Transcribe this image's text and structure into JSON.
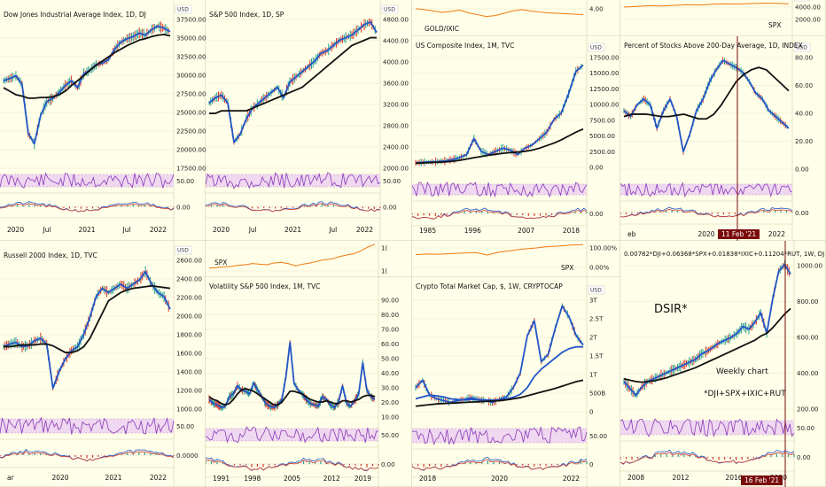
{
  "colors": {
    "background": "#fffee8",
    "grid": "#e9e7cc",
    "blue": "#2255c8",
    "black": "#111111",
    "orange": "#f07a10",
    "purple": "#8a3ab8",
    "rsiBand": "#efd8f0",
    "red": "#d23b2c",
    "green": "#2ba08e",
    "maroon": "#7a0c0c"
  },
  "chart_data": [
    {
      "id": "dji",
      "type": "line",
      "title": "Dow Jones Industrial Average Index, 1D, DJ",
      "yTicks": [
        "37500.00",
        "35000.00",
        "32500.00",
        "30000.00",
        "27500.00",
        "25000.00",
        "22500.00",
        "20000.00",
        "17500.00"
      ],
      "yRange": [
        16000,
        38000
      ],
      "xTicks": [
        "2020",
        "Jul",
        "2021",
        "Jul",
        "2022"
      ],
      "rsiTicks": [
        "50.00"
      ],
      "macdTicks": [
        "0.00"
      ],
      "unit": "USD",
      "series": [
        {
          "kind": "price",
          "values": [
            28500,
            28800,
            29200,
            28000,
            21000,
            19500,
            23500,
            25500,
            26000,
            26800,
            27800,
            28500,
            27500,
            29500,
            30000,
            30800,
            31000,
            31500,
            33000,
            34000,
            34500,
            34800,
            35300,
            35000,
            35800,
            36300,
            36000,
            35500
          ]
        },
        {
          "kind": "ma",
          "values": [
            27500,
            27000,
            26500,
            26300,
            26000,
            26000,
            26100,
            26100,
            26200,
            26500,
            27000,
            27800,
            28500,
            29200,
            30000,
            30700,
            31300,
            31900,
            32500,
            33000,
            33500,
            33900,
            34300,
            34500,
            34800,
            35000,
            35100,
            34900
          ]
        }
      ]
    },
    {
      "id": "spx",
      "type": "line",
      "title": "S&P 500 Index, 1D, SP",
      "yTicks": [
        "4800.00",
        "4400.00",
        "4000.00",
        "3600.00",
        "3200.00",
        "2800.00",
        "2400.00",
        "2000.00"
      ],
      "yRange": [
        1950,
        4900
      ],
      "xTicks": [
        "2020",
        "Jul",
        "2021",
        "Jul",
        "2022"
      ],
      "rsiTicks": [
        "50.00"
      ],
      "macdTicks": [
        "0.00"
      ],
      "unit": "USD",
      "series": [
        {
          "kind": "price",
          "values": [
            3200,
            3300,
            3350,
            3200,
            2450,
            2600,
            2900,
            3100,
            3200,
            3300,
            3400,
            3500,
            3300,
            3600,
            3700,
            3800,
            3900,
            4000,
            4150,
            4200,
            4300,
            4400,
            4450,
            4500,
            4600,
            4700,
            4750,
            4550
          ]
        },
        {
          "kind": "ma",
          "values": [
            3000,
            3000,
            3050,
            3050,
            3050,
            3050,
            3050,
            3100,
            3150,
            3200,
            3250,
            3300,
            3350,
            3400,
            3450,
            3500,
            3600,
            3700,
            3800,
            3900,
            4000,
            4100,
            4200,
            4300,
            4350,
            4400,
            4450,
            4450
          ]
        }
      ]
    },
    {
      "id": "goldixic",
      "type": "line",
      "title": "GOLD/IXIC",
      "yTicks": [
        "4.00"
      ],
      "yRange": [
        0,
        5
      ],
      "unit": "",
      "series": [
        {
          "kind": "price",
          "values": [
            3.5,
            3.3,
            3.0,
            2.7,
            2.9,
            3.2,
            2.6,
            2.2,
            1.8,
            2.0,
            2.5,
            3.0,
            3.3,
            3.0,
            2.8,
            2.6,
            2.5,
            2.4,
            2.3,
            2.2
          ]
        }
      ]
    },
    {
      "id": "spxmini1",
      "type": "line",
      "title": "SPX",
      "yTicks": [
        "4000.00",
        "2000.00"
      ],
      "yRange": [
        0,
        5000
      ],
      "unit": "USD",
      "series": [
        {
          "kind": "price",
          "values": [
            3500,
            3700,
            3900,
            3800,
            4000,
            4200,
            4100,
            4300,
            4400,
            4350,
            4500,
            4600,
            4550,
            4400
          ]
        }
      ]
    },
    {
      "id": "ixic",
      "type": "line",
      "title": "US Composite Index, 1M, TVC",
      "yTicks": [
        "17500.00",
        "15000.00",
        "12500.00",
        "10000.00",
        "7500.00",
        "5000.00",
        "2500.00",
        "0.00"
      ],
      "yRange": [
        -500,
        17500
      ],
      "xTicks": [
        "1985",
        "1996",
        "2007",
        "2018"
      ],
      "rsiTicks": [],
      "macdTicks": [
        "0.00"
      ],
      "unit": "USD",
      "series": [
        {
          "kind": "price",
          "values": [
            200,
            300,
            350,
            400,
            500,
            700,
            1000,
            1500,
            4000,
            2000,
            1500,
            2000,
            2500,
            2200,
            1500,
            2500,
            3000,
            4000,
            5000,
            7000,
            8000,
            11000,
            14500,
            15500
          ]
        },
        {
          "kind": "ma",
          "values": [
            150,
            200,
            250,
            300,
            350,
            450,
            600,
            800,
            1000,
            1200,
            1400,
            1550,
            1700,
            1800,
            1900,
            2000,
            2200,
            2500,
            2900,
            3300,
            3800,
            4400,
            5000,
            5500
          ]
        }
      ]
    },
    {
      "id": "pct200",
      "type": "line",
      "title": "Percent of Stocks Above 200-Day Average, 1D, INDEX",
      "yTicks": [
        "80.00",
        "60.00",
        "40.00",
        "20.00",
        "0.00"
      ],
      "yRange": [
        -5,
        95
      ],
      "xTicks": [
        "eb",
        "2020",
        "2022"
      ],
      "rsiTicks": [],
      "macdTicks": [
        "0.00"
      ],
      "unit": "USD",
      "dateLabel": "11 Feb '21",
      "series": [
        {
          "kind": "price",
          "values": [
            45,
            40,
            50,
            55,
            50,
            30,
            45,
            55,
            40,
            10,
            25,
            45,
            55,
            70,
            80,
            88,
            85,
            82,
            78,
            70,
            60,
            55,
            45,
            40,
            35,
            30
          ]
        },
        {
          "kind": "ma",
          "values": [
            40,
            42,
            42,
            42,
            41,
            40,
            40,
            41,
            42,
            40,
            38,
            38,
            42,
            50,
            60,
            70,
            76,
            80,
            82,
            80,
            74,
            68,
            62
          ]
        }
      ]
    },
    {
      "id": "rut",
      "type": "line",
      "title": "Russell 2000 Index, 1D, TVC",
      "yTicks": [
        "2600.00",
        "2400.00",
        "2200.00",
        "2000.00",
        "1800.00",
        "1600.00",
        "1400.00",
        "1200.00",
        "1000.00"
      ],
      "yRange": [
        800,
        2650
      ],
      "xTicks": [
        "ar",
        "2020",
        "2021",
        "2022"
      ],
      "rsiTicks": [
        "50.00"
      ],
      "macdTicks": [
        "0.0000"
      ],
      "unit": "USD",
      "series": [
        {
          "kind": "price",
          "values": [
            1550,
            1580,
            1600,
            1550,
            1560,
            1620,
            1650,
            1580,
            1050,
            1250,
            1400,
            1500,
            1550,
            1700,
            1900,
            2150,
            2250,
            2200,
            2250,
            2300,
            2250,
            2300,
            2350,
            2450,
            2300,
            2200,
            2150,
            2000
          ]
        },
        {
          "kind": "ma",
          "values": [
            1550,
            1550,
            1560,
            1570,
            1570,
            1570,
            1580,
            1580,
            1560,
            1520,
            1480,
            1480,
            1500,
            1550,
            1650,
            1800,
            1950,
            2100,
            2150,
            2200,
            2230,
            2250,
            2260,
            2270,
            2280,
            2270,
            2260,
            2250
          ]
        }
      ]
    },
    {
      "id": "spxmini2",
      "type": "line",
      "title": "SPX",
      "yTicks": [
        "1(",
        "1("
      ],
      "yRange": [
        0,
        5000
      ],
      "unit": "",
      "series": [
        {
          "kind": "price",
          "values": [
            500,
            600,
            700,
            800,
            1000,
            1100,
            1300,
            1200,
            1100,
            1400,
            1500,
            1300,
            900,
            1200,
            1400,
            1700,
            2000,
            2100,
            2500,
            2800,
            3000,
            3500,
            4200,
            4700
          ]
        }
      ]
    },
    {
      "id": "vix",
      "type": "bar",
      "title": "Volatility S&P 500 Index, 1M, TVC",
      "yTicks": [
        "90.00",
        "80.00",
        "70.00",
        "60.00",
        "50.00",
        "40.00",
        "30.00",
        "20.00",
        "10.00"
      ],
      "yRange": [
        5,
        95
      ],
      "xTicks": [
        "1991",
        "1998",
        "2005",
        "2012",
        "2019"
      ],
      "rsiTicks": [
        "50.00"
      ],
      "macdTicks": [
        "0.00"
      ],
      "unit": "",
      "series": [
        {
          "kind": "price",
          "values": [
            18,
            15,
            14,
            12,
            13,
            20,
            22,
            28,
            25,
            24,
            22,
            30,
            25,
            20,
            15,
            13,
            12,
            14,
            18,
            35,
            60,
            30,
            25,
            22,
            18,
            15,
            14,
            13,
            20,
            18,
            14,
            12,
            16,
            28,
            15,
            13,
            17,
            22,
            45,
            25,
            20,
            18
          ]
        },
        {
          "kind": "ma",
          "values": [
            20,
            18,
            17,
            15,
            14,
            15,
            18,
            22,
            25,
            26,
            25,
            24,
            22,
            20,
            18,
            16,
            14,
            14,
            16,
            20,
            24,
            24,
            23,
            22,
            20,
            18,
            17,
            16,
            16,
            17,
            16,
            15,
            15,
            17,
            17,
            16,
            17,
            18,
            20,
            21,
            21,
            20
          ]
        }
      ]
    },
    {
      "id": "spxmini3",
      "type": "line",
      "title": "SPX",
      "yTicks": [
        "100.00%",
        "0.00%"
      ],
      "yRange": [
        0,
        5000
      ],
      "unit": "",
      "series": [
        {
          "kind": "price",
          "values": [
            2600,
            2700,
            2650,
            2800,
            2900,
            3000,
            2500,
            3100,
            3400,
            3700,
            3900,
            4200,
            4300,
            4500,
            4600
          ]
        }
      ]
    },
    {
      "id": "crypto",
      "type": "line",
      "title": "Crypto Total Market Cap, $, 1W, CRYPTOCAP",
      "yTicks": [
        "3T",
        "2.5T",
        "2T",
        "1.5T",
        "1T",
        "500B",
        "0"
      ],
      "yRange": [
        -50,
        3100
      ],
      "xTicks": [
        "2018",
        "2020",
        "2022"
      ],
      "rsiTicks": [
        "50.00"
      ],
      "macdTicks": [
        "0"
      ],
      "unit": "USD",
      "series": [
        {
          "kind": "price",
          "values": [
            600,
            800,
            400,
            300,
            250,
            200,
            250,
            280,
            330,
            270,
            250,
            200,
            280,
            350,
            600,
            1000,
            2000,
            2400,
            1300,
            1500,
            2200,
            2800,
            2500,
            2000,
            1750
          ]
        },
        {
          "kind": "ma",
          "values": [
            300,
            350,
            400,
            380,
            350,
            300,
            280,
            270,
            280,
            280,
            270,
            260,
            270,
            290,
            340,
            420,
            600,
            900,
            1100,
            1250,
            1400,
            1550,
            1650,
            1700,
            1700
          ]
        },
        {
          "kind": "ma2",
          "values": [
            100,
            120,
            140,
            160,
            170,
            180,
            190,
            200,
            210,
            220,
            230,
            240,
            250,
            270,
            300,
            330,
            380,
            430,
            480,
            530,
            580,
            640,
            700,
            760,
            800
          ]
        }
      ]
    },
    {
      "id": "dsir",
      "type": "line",
      "title": "0.00782*DJI+0.06368*SPX+0.01838*IXIC+0.11204*RUT, 1W, DJ",
      "yTicks": [
        "1000.00",
        "800.00",
        "600.00",
        "400.00",
        "200.00"
      ],
      "yRange": [
        100,
        1180
      ],
      "xTicks": [
        "2008",
        "2012",
        "2016",
        "2020"
      ],
      "rsiTicks": [
        "50.00"
      ],
      "macdTicks": [
        "0.00"
      ],
      "unit": "",
      "dateLabel": "16 Feb '21",
      "annotations": [
        "DSIR*",
        "Weekly chart",
        "*DJI+SPX+IXIC+RUT"
      ],
      "series": [
        {
          "kind": "price",
          "values": [
            300,
            250,
            200,
            260,
            300,
            320,
            340,
            360,
            380,
            400,
            420,
            440,
            460,
            500,
            520,
            550,
            580,
            600,
            620,
            650,
            700,
            680,
            730,
            800,
            650,
            900,
            1100,
            1150,
            1080
          ]
        },
        {
          "kind": "ma",
          "values": [
            320,
            310,
            300,
            295,
            300,
            305,
            315,
            325,
            340,
            355,
            370,
            385,
            400,
            420,
            440,
            460,
            480,
            500,
            520,
            540,
            560,
            580,
            600,
            630,
            650,
            690,
            740,
            790,
            830
          ]
        }
      ]
    }
  ]
}
